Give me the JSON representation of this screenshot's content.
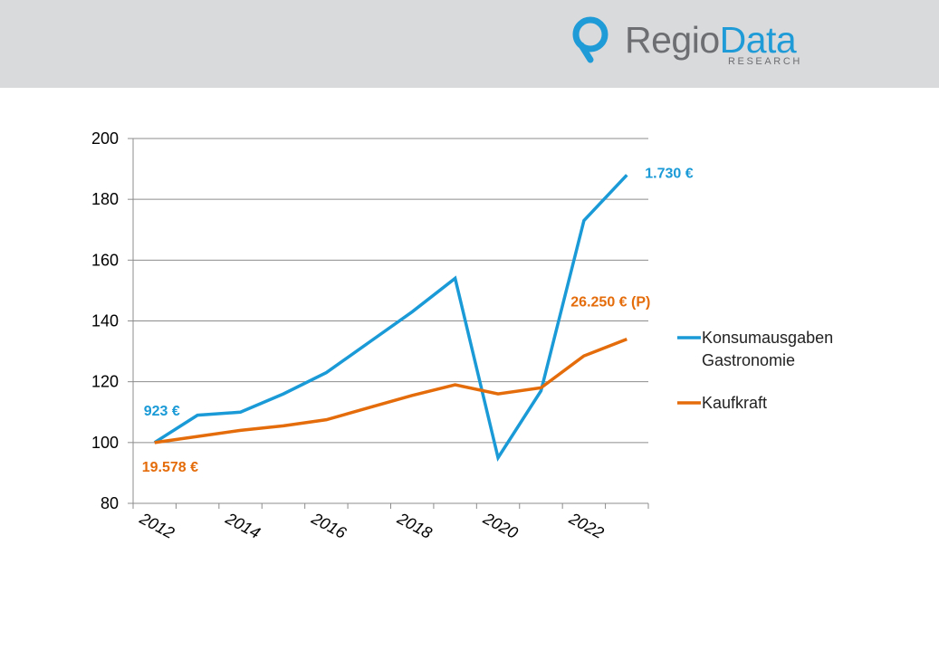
{
  "header": {
    "logo_part1": "Regio",
    "logo_part2": "Data",
    "logo_sub": "RESEARCH",
    "background": "#d9dadc",
    "brand_blue": "#1f9bd7",
    "brand_gray": "#6d6e71"
  },
  "chart_data": {
    "type": "line",
    "title": "",
    "xlabel": "",
    "ylabel": "",
    "ylim": [
      80,
      200
    ],
    "yticks": [
      80,
      100,
      120,
      140,
      160,
      180,
      200
    ],
    "xlim": [
      2011,
      2023
    ],
    "xtick_labels": [
      "2012",
      "2014",
      "2016",
      "2018",
      "2020",
      "2022"
    ],
    "grid": true,
    "legend_position": "right",
    "x": [
      2012,
      2013,
      2014,
      2015,
      2016,
      2017,
      2018,
      2019,
      2020,
      2021,
      2022,
      2023
    ],
    "series": [
      {
        "name_lines": [
          "Konsumausgaben",
          "Gastronomie"
        ],
        "color": "#1a9ad6",
        "values": [
          100,
          109,
          110,
          116,
          123,
          133,
          143,
          154,
          95,
          117,
          173,
          188
        ],
        "annotations": [
          {
            "label": "923 €",
            "x": 2012,
            "y": 100
          },
          {
            "label": "1.730 €",
            "x": 2023,
            "y": 188
          }
        ]
      },
      {
        "name_lines": [
          "Kaufkraft"
        ],
        "color": "#e46c0a",
        "values": [
          100,
          102,
          104,
          105.5,
          107.5,
          111.5,
          115.5,
          119,
          116,
          118,
          128.5,
          134
        ],
        "annotations": [
          {
            "label": "19.578 €",
            "x": 2012,
            "y": 100
          },
          {
            "label": "26.250 € (P)",
            "x": 2023,
            "y": 134
          }
        ]
      }
    ]
  }
}
